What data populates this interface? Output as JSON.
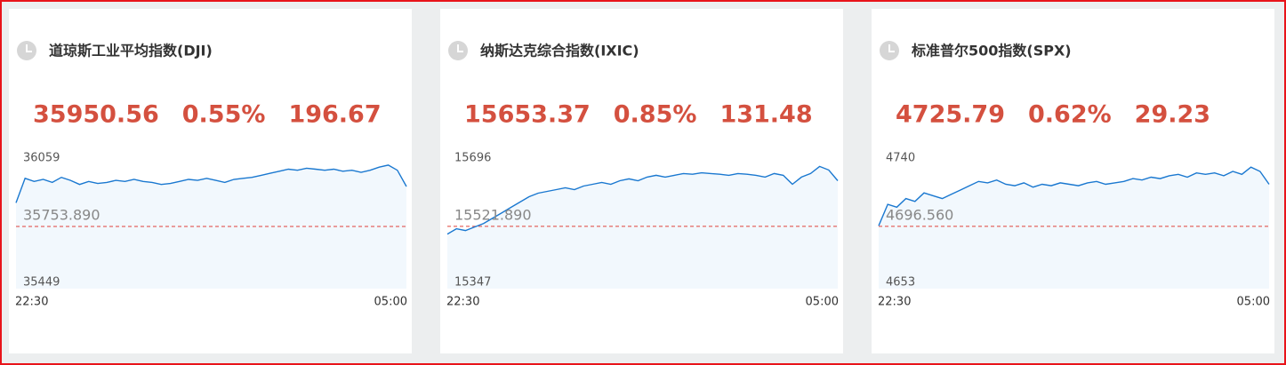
{
  "chart_data": [
    {
      "type": "line",
      "title": "道琼斯工业平均指数(DJI)",
      "quote": [
        "35950.56",
        "0.55%",
        "196.67"
      ],
      "ylim": [
        35449,
        36059
      ],
      "yticks": [
        35449,
        36059
      ],
      "reference": {
        "value": 35753.89,
        "label": "35753.890"
      },
      "color": "#1a78d0",
      "fill": "#f2f8fd",
      "reference_color": "#e0413a",
      "categories": [
        "22:30",
        null,
        null,
        null,
        null,
        null,
        null,
        null,
        null,
        null,
        null,
        null,
        null,
        null,
        null,
        null,
        null,
        null,
        null,
        null,
        null,
        null,
        null,
        null,
        null,
        null,
        null,
        null,
        null,
        null,
        null,
        null,
        null,
        null,
        null,
        null,
        null,
        null,
        null,
        null,
        null,
        null,
        null,
        "05:00"
      ],
      "values": [
        35870,
        35990,
        35975,
        35985,
        35970,
        35995,
        35980,
        35960,
        35975,
        35965,
        35970,
        35980,
        35975,
        35985,
        35975,
        35970,
        35960,
        35965,
        35975,
        35985,
        35980,
        35990,
        35980,
        35970,
        35985,
        35990,
        35995,
        36005,
        36015,
        36025,
        36035,
        36030,
        36040,
        36035,
        36030,
        36035,
        36025,
        36030,
        36020,
        36030,
        36045,
        36055,
        36030,
        35950
      ]
    },
    {
      "type": "line",
      "title": "纳斯达克综合指数(IXIC)",
      "quote": [
        "15653.37",
        "0.85%",
        "131.48"
      ],
      "ylim": [
        15347,
        15696
      ],
      "yticks": [
        15347,
        15696
      ],
      "reference": {
        "value": 15521.89,
        "label": "15521.890"
      },
      "color": "#1a78d0",
      "fill": "#f2f8fd",
      "reference_color": "#e0413a",
      "categories": [
        "22:30",
        null,
        null,
        null,
        null,
        null,
        null,
        null,
        null,
        null,
        null,
        null,
        null,
        null,
        null,
        null,
        null,
        null,
        null,
        null,
        null,
        null,
        null,
        null,
        null,
        null,
        null,
        null,
        null,
        null,
        null,
        null,
        null,
        null,
        null,
        null,
        null,
        null,
        null,
        null,
        null,
        null,
        null,
        "05:00"
      ],
      "values": [
        15500,
        15515,
        15510,
        15520,
        15530,
        15545,
        15560,
        15575,
        15590,
        15605,
        15615,
        15620,
        15625,
        15630,
        15625,
        15635,
        15640,
        15645,
        15640,
        15650,
        15655,
        15650,
        15660,
        15665,
        15660,
        15665,
        15670,
        15668,
        15672,
        15670,
        15668,
        15665,
        15670,
        15668,
        15665,
        15660,
        15670,
        15665,
        15640,
        15660,
        15670,
        15690,
        15680,
        15650
      ]
    },
    {
      "type": "line",
      "title": "标准普尔500指数(SPX)",
      "quote": [
        "4725.79",
        "0.62%",
        "29.23"
      ],
      "ylim": [
        4653,
        4740
      ],
      "yticks": [
        4653,
        4740
      ],
      "reference": {
        "value": 4696.56,
        "label": "4696.560"
      },
      "color": "#1a78d0",
      "fill": "#f2f8fd",
      "reference_color": "#e0413a",
      "categories": [
        "22:30",
        null,
        null,
        null,
        null,
        null,
        null,
        null,
        null,
        null,
        null,
        null,
        null,
        null,
        null,
        null,
        null,
        null,
        null,
        null,
        null,
        null,
        null,
        null,
        null,
        null,
        null,
        null,
        null,
        null,
        null,
        null,
        null,
        null,
        null,
        null,
        null,
        null,
        null,
        null,
        null,
        null,
        null,
        "05:00"
      ],
      "values": [
        4697,
        4712,
        4710,
        4716,
        4714,
        4720,
        4718,
        4716,
        4719,
        4722,
        4725,
        4728,
        4727,
        4729,
        4726,
        4725,
        4727,
        4724,
        4726,
        4725,
        4727,
        4726,
        4725,
        4727,
        4728,
        4726,
        4727,
        4728,
        4730,
        4729,
        4731,
        4730,
        4732,
        4733,
        4731,
        4734,
        4733,
        4734,
        4732,
        4735,
        4733,
        4738,
        4735,
        4726
      ]
    }
  ]
}
